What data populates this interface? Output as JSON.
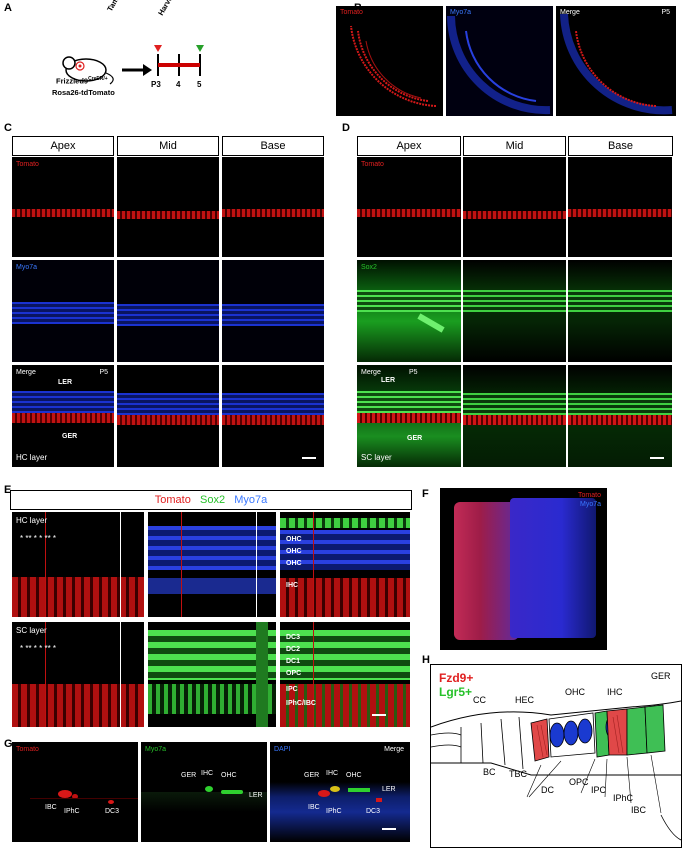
{
  "panels": {
    "a": "A",
    "b": "B",
    "c": "C",
    "d": "D",
    "e": "E",
    "f": "F",
    "g": "G",
    "h": "H"
  },
  "a": {
    "mouse_line1": "Frizzled9",
    "mouse_sup": "CreER/+",
    "mouse_line2": "Rosa26-tdTomato",
    "inj": "Tamoxifen Injection",
    "harvest": "Harvest",
    "t1": "P3",
    "t2": "4",
    "t3": "5"
  },
  "b": {
    "c1": "Tomato",
    "c2": "Myo7a",
    "c3": "Merge",
    "age": "P5"
  },
  "c": {
    "headers": [
      "Apex",
      "Mid",
      "Base"
    ],
    "tomato": "Tomato",
    "myo": "Myo7a",
    "merge": "Merge",
    "age": "P5",
    "ler": "LER",
    "ger": "GER",
    "layer": "HC layer"
  },
  "d": {
    "headers": [
      "Apex",
      "Mid",
      "Base"
    ],
    "tomato": "Tomato",
    "sox": "Sox2",
    "merge": "Merge",
    "age": "P5",
    "ler": "LER",
    "ger": "GER",
    "layer": "SC layer"
  },
  "e": {
    "leg_tomato": "Tomato",
    "leg_sox": "Sox2",
    "leg_myo": "Myo7a",
    "hc": "HC layer",
    "sc": "SC layer",
    "ohc": "OHC",
    "ihc": "IHC",
    "dc3": "DC3",
    "dc2": "DC2",
    "dc1": "DC1",
    "opc": "OPC",
    "ipc": "IPC",
    "iph": "IPhC/IBC"
  },
  "f": {
    "tomato": "Tomato",
    "myo": "Myo7a"
  },
  "g": {
    "tomato": "Tomato",
    "myo": "Myo7a",
    "dapi": "DAPI",
    "merge": "Merge",
    "ibc": "IBC",
    "iphc": "IPhC",
    "dc3": "DC3",
    "ger": "GER",
    "ihc": "IHC",
    "ohc": "OHC",
    "ler": "LER"
  },
  "h": {
    "fzd": "Fzd9+",
    "lgr": "Lgr5+",
    "ger": "GER",
    "ohc": "OHC",
    "ihc": "IHC",
    "hec": "HEC",
    "cc": "CC",
    "bc": "BC",
    "tbc": "TBC",
    "dc": "DC",
    "opc": "OPC",
    "ipc": "IPC",
    "iphc": "IPhC",
    "ibc": "IBC"
  }
}
